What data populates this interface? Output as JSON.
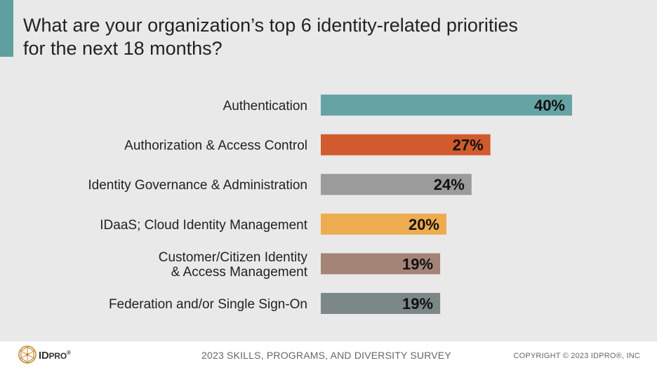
{
  "title": {
    "line1": "What are your organization’s top 6 identity-related priorities",
    "line2": "for the next 18 months?"
  },
  "colors": {
    "accent": "#5f9f9f",
    "background": "#e9e9e9",
    "footer": "#ffffff"
  },
  "chart_data": {
    "type": "bar",
    "orientation": "horizontal",
    "title": "What are your organization’s top 6 identity-related priorities for the next 18 months?",
    "xlabel": "",
    "ylabel": "",
    "xlim": [
      0,
      100
    ],
    "grid": false,
    "legend": "none",
    "categories": [
      [
        "Authentication"
      ],
      [
        "Authorization & Access Control"
      ],
      [
        "Identity Governance & Administration"
      ],
      [
        "IDaaS; Cloud Identity Management"
      ],
      [
        "Customer/Citizen Identity",
        "& Access Management"
      ],
      [
        "Federation and/or Single Sign-On"
      ]
    ],
    "values": [
      40,
      27,
      24,
      20,
      19,
      19
    ],
    "value_labels": [
      "40%",
      "27%",
      "24%",
      "20%",
      "19%",
      "19%"
    ],
    "bar_colors": [
      "#66a3a4",
      "#d15a2e",
      "#9b9b9b",
      "#eeac50",
      "#a38477",
      "#7b8887"
    ]
  },
  "footer": {
    "brand_id": "ID",
    "brand_pro": "PRO",
    "brand_reg": "®",
    "survey": "2023 SKILLS, PROGRAMS, AND DIVERSITY SURVEY",
    "copyright": "COPYRIGHT © 2023 IDPRO®, INC",
    "logo_icon": "network-globe-icon"
  }
}
